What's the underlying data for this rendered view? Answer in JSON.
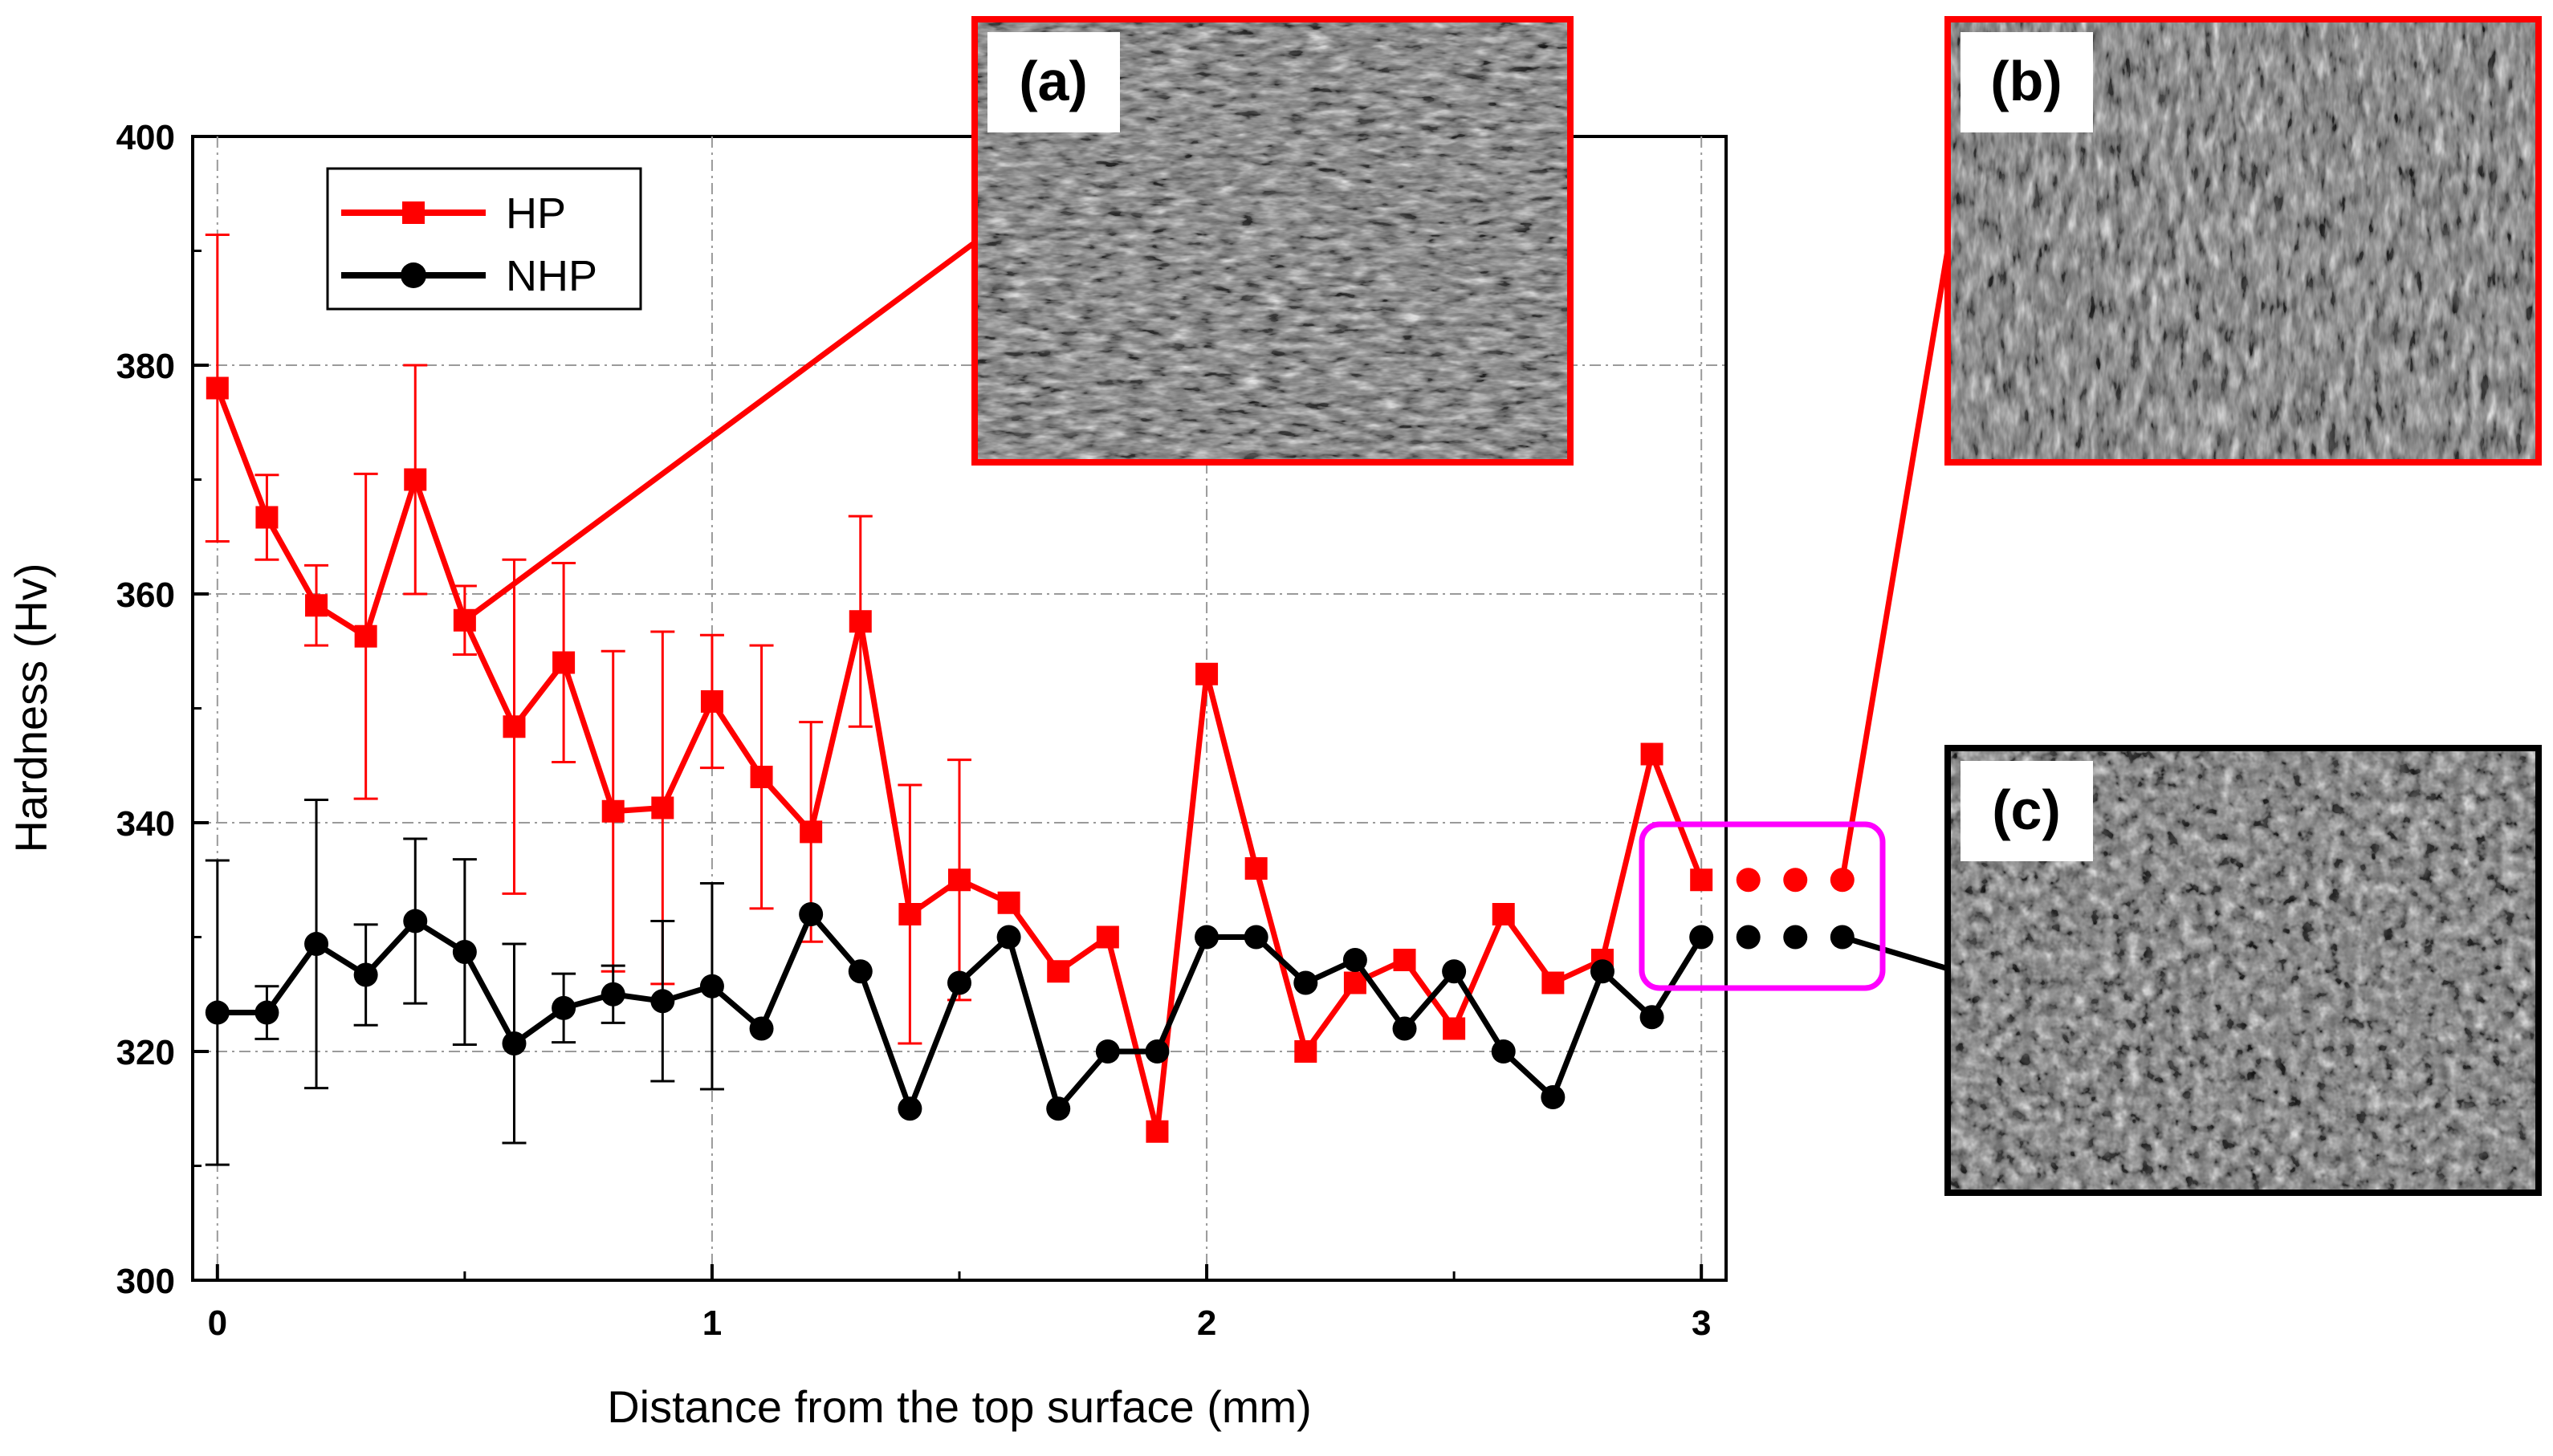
{
  "chart_data": {
    "type": "line",
    "title": "",
    "xlabel": "Distance from the top surface (mm)",
    "ylabel": "Hardness (Hv)",
    "xlim": [
      -0.05,
      3.05
    ],
    "ylim": [
      300,
      400
    ],
    "xticks": [
      "0",
      "1",
      "2",
      "3"
    ],
    "yticks": [
      "300",
      "320",
      "340",
      "360",
      "380",
      "400"
    ],
    "grid": true,
    "legend_position": "top-left",
    "series": [
      {
        "name": "HP",
        "color": "#ff0000",
        "marker": "square",
        "x": [
          0,
          0.1,
          0.2,
          0.3,
          0.4,
          0.5,
          0.6,
          0.7,
          0.8,
          0.9,
          1.0,
          1.1,
          1.2,
          1.3,
          1.4,
          1.5,
          1.6,
          1.7,
          1.8,
          1.9,
          2.0,
          2.1,
          2.2,
          2.3,
          2.4,
          2.5,
          2.6,
          2.7,
          2.8,
          2.9,
          3.0
        ],
        "values": [
          378,
          366.7,
          359,
          356.3,
          370,
          357.7,
          348.4,
          354,
          341,
          341.3,
          350.6,
          344,
          339.2,
          357.6,
          332,
          335,
          333,
          327,
          330,
          313,
          353,
          336,
          320,
          326,
          328,
          322,
          332,
          326,
          328,
          346,
          335
        ],
        "error": [
          13.4,
          3.7,
          3.5,
          14.2,
          10,
          3,
          14.6,
          8.7,
          14,
          15.4,
          5.8,
          11.5,
          9.6,
          9.2,
          11.3,
          10.5,
          null,
          null,
          null,
          null,
          null,
          null,
          null,
          null,
          null,
          null,
          null,
          null,
          null,
          null,
          null
        ],
        "extra_dots": 3
      },
      {
        "name": "NHP",
        "color": "#000000",
        "marker": "circle",
        "x": [
          0,
          0.1,
          0.2,
          0.3,
          0.4,
          0.5,
          0.6,
          0.7,
          0.8,
          0.9,
          1.0,
          1.1,
          1.2,
          1.3,
          1.4,
          1.5,
          1.6,
          1.7,
          1.8,
          1.9,
          2.0,
          2.1,
          2.2,
          2.3,
          2.4,
          2.5,
          2.6,
          2.7,
          2.8,
          2.9,
          3.0
        ],
        "values": [
          323.4,
          323.4,
          329.4,
          326.7,
          331.4,
          328.7,
          320.7,
          323.8,
          325,
          324.4,
          325.7,
          322,
          332,
          327,
          315,
          326,
          330,
          315,
          320,
          320,
          330,
          330,
          326,
          328,
          322,
          327,
          320,
          316,
          327,
          323,
          330
        ],
        "error": [
          13.3,
          2.3,
          12.6,
          4.4,
          7.2,
          8.1,
          8.7,
          3,
          2.5,
          7,
          9,
          null,
          null,
          null,
          null,
          null,
          null,
          null,
          null,
          null,
          null,
          null,
          null,
          null,
          null,
          null,
          null,
          null,
          null,
          null,
          null
        ],
        "extra_dots": 3
      }
    ]
  },
  "insets": [
    {
      "label": "(a)",
      "frame_color": "#ff0000",
      "points_to": "HP at 0.5 mm"
    },
    {
      "label": "(b)",
      "frame_color": "#ff0000",
      "points_to": "HP extra points"
    },
    {
      "label": "(c)",
      "frame_color": "#000000",
      "points_to": "NHP extra points"
    }
  ],
  "highlight_color": "#ff00ff"
}
